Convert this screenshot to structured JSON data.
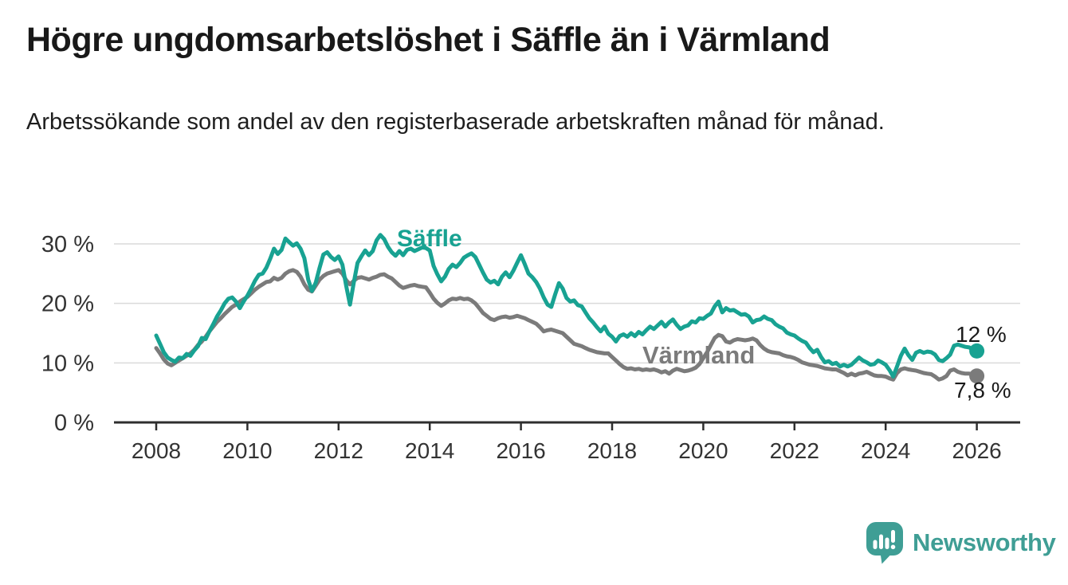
{
  "header": {
    "title": "Högre ungdomsarbetslöshet i Säffle än i Värmland",
    "subtitle": "Arbetssökande som andel av den registerbaserade arbetskraften månad för månad."
  },
  "branding": {
    "logo_text": "Newsworthy",
    "logo_color": "#3f9e95",
    "logo_icon": "speech-bubble-bar-chart-icon"
  },
  "chart_data": {
    "type": "line",
    "title": "",
    "xlabel": "",
    "ylabel": "",
    "x_start_year": 2008,
    "x_points_per_year": 12,
    "xlim": [
      2007.05,
      2027.0
    ],
    "ylim": [
      0,
      33
    ],
    "grid": "horizontal",
    "legend_position": "inline-labels",
    "grid_color": "#dadada",
    "axis_color": "#2e2e2e",
    "tick_label_color": "#333333",
    "yticks": [
      {
        "value": 0,
        "label": "0 %"
      },
      {
        "value": 10,
        "label": "10 %"
      },
      {
        "value": 20,
        "label": "20 %"
      },
      {
        "value": 30,
        "label": "30 %"
      }
    ],
    "xticks": [
      {
        "value": 2008,
        "label": "2008"
      },
      {
        "value": 2010,
        "label": "2010"
      },
      {
        "value": 2012,
        "label": "2012"
      },
      {
        "value": 2014,
        "label": "2014"
      },
      {
        "value": 2016,
        "label": "2016"
      },
      {
        "value": 2018,
        "label": "2018"
      },
      {
        "value": 2020,
        "label": "2020"
      },
      {
        "value": 2022,
        "label": "2022"
      },
      {
        "value": 2024,
        "label": "2024"
      },
      {
        "value": 2026,
        "label": "2026"
      }
    ],
    "series": [
      {
        "name": "Värmland",
        "color": "#7b7b7b",
        "end_label": "7,8 %",
        "values": [
          12.5,
          11.6,
          10.6,
          9.9,
          9.6,
          10.0,
          10.4,
          10.8,
          11.2,
          11.6,
          12.2,
          13.0,
          13.6,
          14.4,
          15.3,
          16.1,
          16.9,
          17.5,
          18.2,
          18.8,
          19.4,
          19.8,
          20.3,
          20.7,
          21.1,
          21.7,
          22.3,
          22.8,
          23.2,
          23.6,
          23.7,
          24.3,
          24.0,
          24.3,
          25.0,
          25.4,
          25.6,
          25.3,
          24.5,
          23.2,
          22.3,
          22.0,
          23.0,
          24.0,
          24.6,
          25.0,
          25.2,
          25.4,
          25.6,
          25.0,
          23.9,
          23.2,
          23.8,
          24.3,
          24.4,
          24.2,
          24.0,
          24.3,
          24.5,
          24.8,
          24.9,
          24.5,
          24.2,
          23.6,
          23.0,
          22.6,
          22.8,
          23.0,
          23.1,
          22.9,
          22.8,
          22.7,
          21.8,
          20.8,
          20.1,
          19.6,
          20.0,
          20.5,
          20.8,
          20.7,
          20.9,
          20.7,
          20.8,
          20.5,
          20.0,
          19.2,
          18.4,
          17.9,
          17.4,
          17.2,
          17.5,
          17.7,
          17.8,
          17.6,
          17.7,
          17.9,
          17.7,
          17.5,
          17.2,
          16.9,
          16.6,
          16.0,
          15.3,
          15.5,
          15.6,
          15.4,
          15.2,
          15.0,
          14.4,
          13.8,
          13.2,
          13.0,
          12.8,
          12.5,
          12.2,
          12.0,
          11.8,
          11.7,
          11.6,
          11.6,
          11.0,
          10.4,
          9.8,
          9.3,
          9.0,
          9.1,
          8.9,
          9.0,
          8.8,
          8.9,
          8.8,
          8.9,
          8.7,
          8.4,
          8.6,
          8.2,
          8.7,
          9.0,
          8.8,
          8.6,
          8.7,
          8.9,
          9.2,
          9.8,
          10.8,
          11.8,
          13.0,
          14.2,
          14.7,
          14.5,
          13.6,
          13.4,
          13.8,
          14.0,
          13.9,
          13.8,
          13.9,
          14.1,
          13.8,
          13.0,
          12.4,
          12.0,
          11.8,
          11.7,
          11.6,
          11.3,
          11.1,
          11.0,
          10.8,
          10.5,
          10.1,
          9.9,
          9.7,
          9.6,
          9.5,
          9.3,
          9.1,
          9.0,
          8.9,
          8.9,
          8.6,
          8.3,
          7.9,
          8.2,
          7.9,
          8.2,
          8.3,
          8.5,
          8.2,
          7.9,
          7.8,
          7.8,
          7.7,
          7.4,
          7.2,
          8.3,
          8.9,
          9.1,
          8.9,
          8.8,
          8.7,
          8.5,
          8.3,
          8.2,
          8.1,
          7.7,
          7.2,
          7.4,
          7.8,
          8.7,
          8.9,
          8.5,
          8.3,
          8.2,
          8.2,
          8.0,
          7.8
        ]
      },
      {
        "name": "Säffle",
        "color": "#18a292",
        "end_label": "12 %",
        "values": [
          14.6,
          13.2,
          11.8,
          10.9,
          10.5,
          10.2,
          10.9,
          10.8,
          11.5,
          11.2,
          12.1,
          12.8,
          14.2,
          14.0,
          15.3,
          16.5,
          17.8,
          18.8,
          20.0,
          20.8,
          21.0,
          20.3,
          19.2,
          20.3,
          21.3,
          22.5,
          23.8,
          24.8,
          25.0,
          26.0,
          27.5,
          29.2,
          28.3,
          29.0,
          30.9,
          30.3,
          29.7,
          30.1,
          29.2,
          27.6,
          24.0,
          22.1,
          23.5,
          26.0,
          28.2,
          28.6,
          27.8,
          27.3,
          27.9,
          26.5,
          23.0,
          19.8,
          23.5,
          26.8,
          27.9,
          28.9,
          28.1,
          28.8,
          30.6,
          31.5,
          30.8,
          29.5,
          28.6,
          28.0,
          28.8,
          28.1,
          29.0,
          29.2,
          28.8,
          29.1,
          29.4,
          29.3,
          28.9,
          26.3,
          24.9,
          23.7,
          24.5,
          25.8,
          26.5,
          26.1,
          26.8,
          27.7,
          28.1,
          28.4,
          27.8,
          26.5,
          25.2,
          24.0,
          23.5,
          23.8,
          23.2,
          24.5,
          25.2,
          24.4,
          25.5,
          26.8,
          28.1,
          26.6,
          25.0,
          24.4,
          23.6,
          22.5,
          21.0,
          19.8,
          19.4,
          21.5,
          23.4,
          22.5,
          20.9,
          20.3,
          20.5,
          19.7,
          19.5,
          18.5,
          17.5,
          16.8,
          16.0,
          15.3,
          16.1,
          14.9,
          14.4,
          13.6,
          14.5,
          14.8,
          14.4,
          15.0,
          14.5,
          15.2,
          14.8,
          15.5,
          16.1,
          15.7,
          16.3,
          16.9,
          16.1,
          16.8,
          17.3,
          16.4,
          15.7,
          16.1,
          16.3,
          17.0,
          16.8,
          17.5,
          17.4,
          17.9,
          18.3,
          19.5,
          20.3,
          18.5,
          19.2,
          18.8,
          18.9,
          18.5,
          18.1,
          18.2,
          17.8,
          16.8,
          17.2,
          17.3,
          17.8,
          17.4,
          17.2,
          16.5,
          16.1,
          15.8,
          15.1,
          14.8,
          14.6,
          14.1,
          13.7,
          13.4,
          12.5,
          11.8,
          12.2,
          11.0,
          10.1,
          10.3,
          9.8,
          10.0,
          9.4,
          9.7,
          9.4,
          9.7,
          10.3,
          10.9,
          10.4,
          10.1,
          9.7,
          9.8,
          10.4,
          10.1,
          9.7,
          8.8,
          7.7,
          9.4,
          11.2,
          12.4,
          11.3,
          10.5,
          11.7,
          12.0,
          11.7,
          11.9,
          11.8,
          11.4,
          10.5,
          10.3,
          10.8,
          11.4,
          12.9,
          13.1,
          12.9,
          12.7,
          12.6,
          12.2,
          12.0
        ]
      }
    ],
    "annotations": [
      {
        "text": "Säffle",
        "series": "Säffle",
        "color": "#18a292"
      },
      {
        "text": "Värmland",
        "series": "Värmland",
        "color": "#7b7b7b"
      }
    ]
  }
}
